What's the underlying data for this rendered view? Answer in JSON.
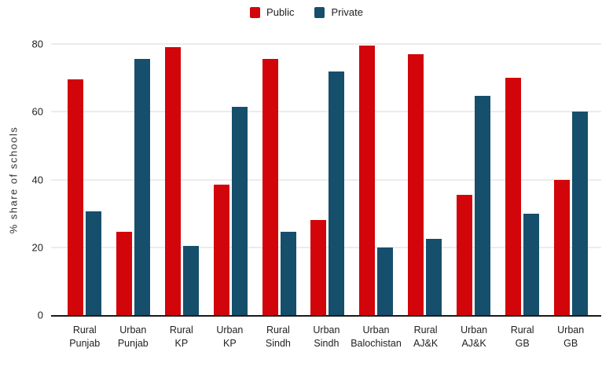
{
  "colors": {
    "public": "#d2050a",
    "private": "#154f6c",
    "gridline": "#d9d9d9",
    "axis": "#1a1a1a",
    "text": "#222222"
  },
  "chart_data": {
    "type": "bar",
    "title": "",
    "xlabel": "",
    "ylabel": "% share of schools",
    "ylim": [
      0,
      80
    ],
    "yticks": [
      0,
      20,
      40,
      60,
      80
    ],
    "grid": true,
    "legend_position": "top-center",
    "categories": [
      "Rural Punjab",
      "Urban Punjab",
      "Rural KP",
      "Urban KP",
      "Rural Sindh",
      "Urban Sindh",
      "Urban Balochistan",
      "Rural AJ&K",
      "Urban AJ&K",
      "Rural GB",
      "Urban GB"
    ],
    "series": [
      {
        "name": "Public",
        "color": "#d2050a",
        "values": [
          69.5,
          24.5,
          79,
          38.5,
          75.5,
          28,
          79.5,
          77,
          35.5,
          70,
          40
        ]
      },
      {
        "name": "Private",
        "color": "#154f6c",
        "values": [
          30.5,
          75.5,
          20.5,
          61.5,
          24.5,
          72,
          20,
          22.5,
          64.8,
          30,
          60
        ]
      }
    ]
  }
}
